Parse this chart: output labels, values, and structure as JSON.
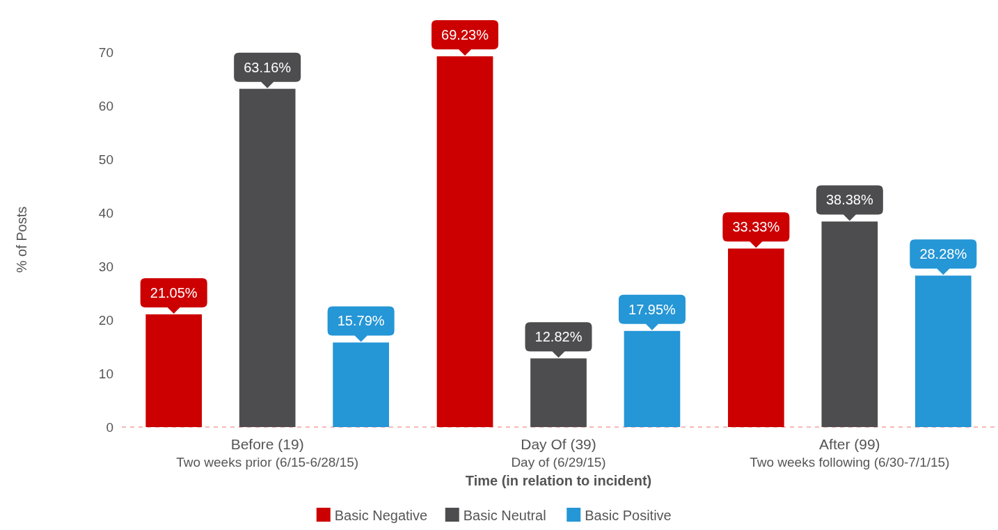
{
  "chart_data": {
    "type": "bar",
    "xlabel": "Time (in relation to incident)",
    "ylabel": "% of Posts",
    "categories": [
      "Before (19)\nTwo weeks prior (6/15-6/28/15)",
      "Day Of (39)\nDay of (6/29/15)",
      "After (99)\nTwo weeks following (6/30-7/1/15)"
    ],
    "series": [
      {
        "name": "Basic Negative",
        "color": "#cc0000",
        "values": [
          21.05,
          69.23,
          33.33
        ],
        "value_labels": [
          "21.05%",
          "69.23%",
          "33.33%"
        ]
      },
      {
        "name": "Basic Neutral",
        "color": "#4d4d4f",
        "values": [
          63.16,
          12.82,
          38.38
        ],
        "value_labels": [
          "63.16%",
          "12.82%",
          "38.38%"
        ]
      },
      {
        "name": "Basic Positive",
        "color": "#2596d6",
        "values": [
          15.79,
          17.95,
          28.28
        ],
        "value_labels": [
          "15.79%",
          "17.95%",
          "28.28%"
        ]
      }
    ],
    "ylim": [
      0,
      70
    ],
    "yticks": [
      0,
      10,
      20,
      30,
      40,
      50,
      60,
      70
    ],
    "grid": false,
    "legend": "bottom"
  }
}
